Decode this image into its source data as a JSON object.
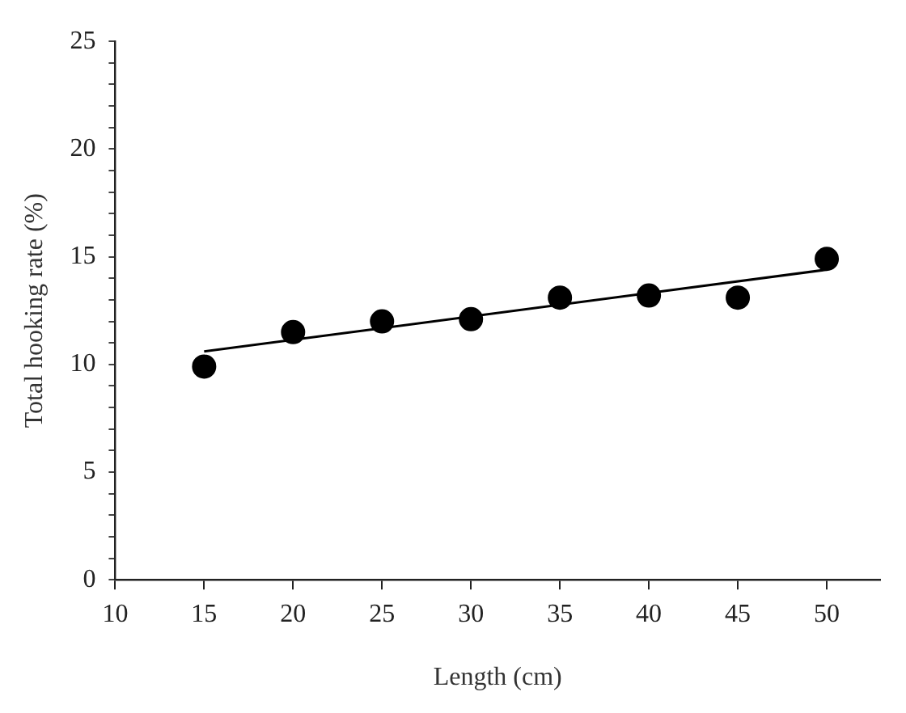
{
  "chart_data": {
    "type": "scatter",
    "xlabel": "Length (cm)",
    "ylabel": "Total hooking rate (%)",
    "x": [
      15,
      20,
      25,
      30,
      35,
      40,
      45,
      50
    ],
    "series": [
      {
        "color": "#000000",
        "marker": "circle",
        "values": [
          9.9,
          11.5,
          12.0,
          12.1,
          13.1,
          13.2,
          13.1,
          14.9
        ]
      },
      {
        "type": "line",
        "marker": "none",
        "color": "#000000",
        "x": [
          15,
          50
        ],
        "values": [
          10.6,
          14.4
        ]
      }
    ],
    "grid": false,
    "legend": false,
    "xlim": [
      10,
      53
    ],
    "xticks": [
      10,
      15,
      20,
      25,
      30,
      35,
      40,
      45,
      50
    ],
    "ylim": [
      0,
      25
    ],
    "yticks": [
      0,
      {
        "value": 1,
        "label": null
      },
      {
        "value": 2,
        "label": null
      },
      {
        "value": 3,
        "label": null
      },
      {
        "value": 4,
        "label": null
      },
      5,
      {
        "value": 6,
        "label": null
      },
      {
        "value": 7,
        "label": null
      },
      {
        "value": 8,
        "label": null
      },
      {
        "value": 9,
        "label": null
      },
      10,
      {
        "value": 11,
        "label": null
      },
      {
        "value": 12,
        "label": null
      },
      {
        "value": 13,
        "label": null
      },
      {
        "value": 14,
        "label": null
      },
      15,
      {
        "value": 16,
        "label": null
      },
      {
        "value": 17,
        "label": null
      },
      {
        "value": 18,
        "label": null
      },
      {
        "value": 19,
        "label": null
      },
      20,
      {
        "value": 21,
        "label": null
      },
      {
        "value": 22,
        "label": null
      },
      {
        "value": 23,
        "label": null
      },
      {
        "value": 24,
        "label": null
      },
      25
    ]
  }
}
